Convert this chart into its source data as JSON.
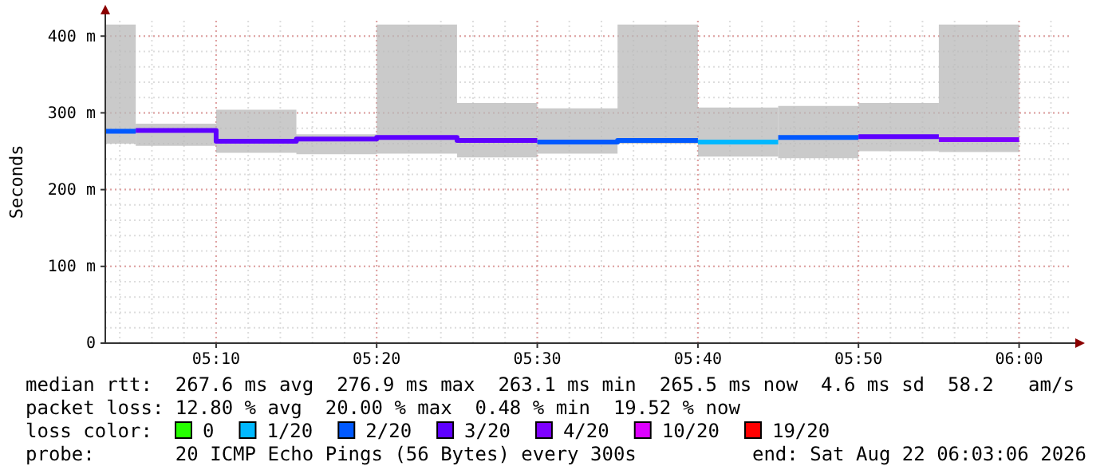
{
  "chart_data": {
    "type": "line",
    "ylabel": "Seconds",
    "legend_title": "loss color:",
    "legend": "bottom",
    "grid": true,
    "xlim": [
      5.0517,
      6.0517
    ],
    "xticks": [
      {
        "value": 5.1667,
        "label": "05:10"
      },
      {
        "value": 5.3333,
        "label": "05:20"
      },
      {
        "value": 5.5,
        "label": "05:30"
      },
      {
        "value": 5.6667,
        "label": "05:40"
      },
      {
        "value": 5.8333,
        "label": "05:50"
      },
      {
        "value": 6.0,
        "label": "06:00"
      }
    ],
    "ylim": [
      0,
      420
    ],
    "yticks": [
      0,
      {
        "value": 100,
        "label": "100 m"
      },
      {
        "value": 200,
        "label": "200 m"
      },
      {
        "value": 300,
        "label": "300 m"
      },
      {
        "value": 400,
        "label": "400 m"
      }
    ],
    "series": [
      {
        "name": "0",
        "color": "#26ff00"
      },
      {
        "name": "1/20",
        "color": "#00b8ff",
        "x": [
          5.6667,
          5.75
        ],
        "values": [
          262,
          262
        ],
        "lower": [
          243,
          243
        ],
        "upper": [
          307,
          307
        ]
      },
      {
        "name": "2/20",
        "color": "#0059ff",
        "x": [
          5.0517,
          5.0833,
          null,
          5.5,
          5.5833,
          5.5833,
          5.6667,
          null,
          5.75,
          5.8333
        ],
        "values": [
          276,
          276,
          null,
          262,
          262,
          264,
          264,
          null,
          268,
          268
        ],
        "lower": [
          260,
          260,
          null,
          247,
          247,
          260,
          260,
          null,
          241,
          241
        ],
        "upper": [
          415,
          415,
          null,
          306,
          306,
          415,
          415,
          null,
          309,
          309
        ]
      },
      {
        "name": "3/20",
        "color": "#5e00ff",
        "x": [
          5.0833,
          5.1667,
          5.1667,
          5.25,
          5.25,
          5.3333,
          5.3333,
          5.4167,
          5.4167,
          5.5,
          null,
          5.8333,
          5.9167
        ],
        "values": [
          277,
          277,
          263,
          263,
          266,
          266,
          268,
          268,
          264,
          264,
          null,
          269,
          269
        ],
        "lower": [
          257,
          257,
          248,
          248,
          246,
          246,
          247,
          247,
          242,
          242,
          null,
          250,
          250
        ],
        "upper": [
          286,
          286,
          304,
          304,
          272,
          272,
          415,
          415,
          313,
          313,
          null,
          313,
          313
        ]
      },
      {
        "name": "4/20",
        "color": "#7e00ff",
        "x": [
          5.9167,
          6.0
        ],
        "values": [
          265,
          265
        ],
        "lower": [
          249,
          249
        ],
        "upper": [
          415,
          415
        ]
      },
      {
        "name": "10/20",
        "color": "#dd00ff"
      },
      {
        "name": "19/20",
        "color": "#ff0000"
      }
    ],
    "annotations": [
      "median rtt:  267.6 ms avg  276.9 ms max  263.1 ms min  265.5 ms now  4.6 ms sd  58.2   am/s",
      "packet loss: 12.80 % avg  20.00 % max  0.48 % min  19.52 % now",
      "probe:       20 ICMP Echo Pings (56 Bytes) every 300s",
      "end: Sat Aug 22 06:03:06 2026"
    ]
  }
}
